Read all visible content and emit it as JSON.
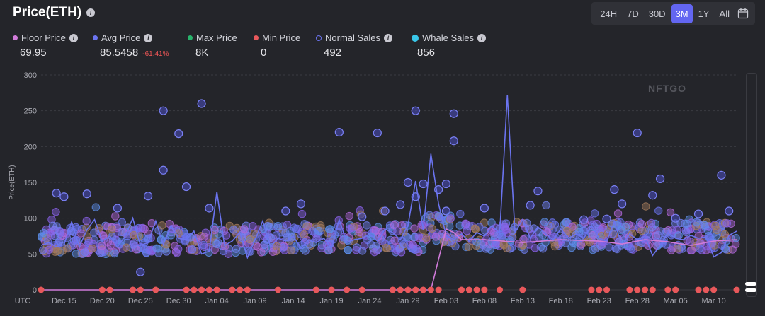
{
  "header": {
    "title": "Price(ETH)"
  },
  "range": {
    "options": [
      "24H",
      "7D",
      "30D",
      "3M",
      "1Y",
      "All"
    ],
    "active": "3M"
  },
  "stats": {
    "floor": {
      "label": "Floor Price",
      "value": "69.95",
      "color": "#d07bd9"
    },
    "avg": {
      "label": "Avg Price",
      "value": "85.5458",
      "change": "-61.41%",
      "color": "#6b74f0"
    },
    "max": {
      "label": "Max Price",
      "value": "8K",
      "color": "#28b36b"
    },
    "min": {
      "label": "Min Price",
      "value": "0",
      "color": "#e8585b"
    },
    "normal": {
      "label": "Normal Sales",
      "value": "492",
      "color": "#6b74f0"
    },
    "whale": {
      "label": "Whale Sales",
      "value": "856",
      "color": "#39c6e8"
    }
  },
  "watermark": "NFTGO",
  "chart_data": {
    "type": "scatter",
    "ylabel": "Price(ETH)",
    "ylim": [
      0,
      300
    ],
    "yticks": [
      0,
      50,
      100,
      150,
      200,
      250,
      300
    ],
    "xstart": "UTC",
    "xticks": [
      "Dec 15",
      "Dec 20",
      "Dec 25",
      "Dec 30",
      "Jan 04",
      "Jan 09",
      "Jan 14",
      "Jan 19",
      "Jan 24",
      "Jan 29",
      "Feb 03",
      "Feb 08",
      "Feb 13",
      "Feb 18",
      "Feb 23",
      "Feb 28",
      "Mar 05",
      "Mar 10"
    ],
    "xlim": [
      12,
      103
    ],
    "avg_line": [
      [
        12,
        62
      ],
      [
        13,
        66
      ],
      [
        14,
        60
      ],
      [
        15,
        63
      ],
      [
        16,
        95
      ],
      [
        17,
        60
      ],
      [
        18,
        84
      ],
      [
        19,
        98
      ],
      [
        20,
        68
      ],
      [
        21,
        75
      ],
      [
        22,
        60
      ],
      [
        23,
        75
      ],
      [
        24,
        100
      ],
      [
        25,
        62
      ],
      [
        26,
        66
      ],
      [
        27,
        96
      ],
      [
        28,
        63
      ],
      [
        29,
        90
      ],
      [
        30,
        72
      ],
      [
        31,
        70
      ],
      [
        32,
        82
      ],
      [
        33,
        50
      ],
      [
        34,
        54
      ],
      [
        35,
        137
      ],
      [
        36,
        62
      ],
      [
        37,
        68
      ],
      [
        38,
        80
      ],
      [
        39,
        45
      ],
      [
        40,
        70
      ],
      [
        41,
        96
      ],
      [
        42,
        60
      ],
      [
        43,
        72
      ],
      [
        44,
        68
      ],
      [
        45,
        75
      ],
      [
        46,
        58
      ],
      [
        47,
        70
      ],
      [
        48,
        66
      ],
      [
        49,
        72
      ],
      [
        50,
        58
      ],
      [
        51,
        98
      ],
      [
        52,
        66
      ],
      [
        53,
        70
      ],
      [
        54,
        72
      ],
      [
        55,
        78
      ],
      [
        56,
        68
      ],
      [
        57,
        85
      ],
      [
        58,
        80
      ],
      [
        59,
        70
      ],
      [
        60,
        90
      ],
      [
        61,
        152
      ],
      [
        62,
        84
      ],
      [
        63,
        190
      ],
      [
        64,
        120
      ],
      [
        65,
        76
      ],
      [
        66,
        70
      ],
      [
        67,
        78
      ],
      [
        68,
        68
      ],
      [
        69,
        80
      ],
      [
        70,
        75
      ],
      [
        71,
        90
      ],
      [
        72,
        78
      ],
      [
        73,
        272
      ],
      [
        74,
        80
      ],
      [
        75,
        98
      ],
      [
        76,
        72
      ],
      [
        77,
        88
      ],
      [
        78,
        78
      ],
      [
        79,
        70
      ],
      [
        80,
        85
      ],
      [
        81,
        72
      ],
      [
        82,
        78
      ],
      [
        83,
        72
      ],
      [
        84,
        90
      ],
      [
        85,
        72
      ],
      [
        86,
        68
      ],
      [
        87,
        95
      ],
      [
        88,
        62
      ],
      [
        89,
        78
      ],
      [
        90,
        70
      ],
      [
        91,
        75
      ],
      [
        92,
        48
      ],
      [
        93,
        62
      ],
      [
        94,
        80
      ],
      [
        95,
        72
      ],
      [
        96,
        70
      ],
      [
        97,
        76
      ],
      [
        98,
        72
      ],
      [
        99,
        74
      ],
      [
        100,
        46
      ],
      [
        101,
        52
      ],
      [
        102,
        76
      ],
      [
        103,
        82
      ]
    ],
    "floor_line": [
      [
        12,
        0
      ],
      [
        63,
        0
      ],
      [
        65,
        85
      ],
      [
        66,
        80
      ],
      [
        67,
        70
      ],
      [
        70,
        70
      ],
      [
        75,
        66
      ],
      [
        80,
        70
      ],
      [
        85,
        68
      ],
      [
        88,
        64
      ],
      [
        91,
        70
      ],
      [
        94,
        67
      ],
      [
        97,
        62
      ],
      [
        100,
        68
      ],
      [
        103,
        70
      ]
    ],
    "whale_sales": [
      [
        25,
        25
      ],
      [
        30,
        218
      ],
      [
        31,
        144
      ],
      [
        28,
        167
      ],
      [
        56,
        219
      ],
      [
        66,
        246
      ],
      [
        66,
        208
      ],
      [
        64,
        140
      ],
      [
        65,
        148
      ],
      [
        90,
        219
      ],
      [
        93,
        155
      ],
      [
        101,
        160
      ],
      [
        92,
        132
      ],
      [
        87,
        140
      ],
      [
        88,
        120
      ],
      [
        77,
        138
      ],
      [
        61,
        130
      ],
      [
        62,
        148
      ],
      [
        60,
        150
      ],
      [
        65,
        110
      ],
      [
        33,
        260
      ],
      [
        51,
        220
      ],
      [
        28,
        250
      ],
      [
        61,
        250
      ],
      [
        14,
        135
      ],
      [
        15,
        130
      ],
      [
        18,
        134
      ],
      [
        22,
        114
      ],
      [
        26,
        131
      ],
      [
        34,
        114
      ],
      [
        44,
        110
      ],
      [
        46,
        120
      ],
      [
        57,
        110
      ],
      [
        54,
        102
      ],
      [
        59,
        119
      ],
      [
        70,
        114
      ],
      [
        76,
        118
      ],
      [
        83,
        98
      ],
      [
        86,
        99
      ],
      [
        95,
        100
      ],
      [
        98,
        106
      ],
      [
        102,
        110
      ]
    ],
    "min_sales": [
      12,
      20,
      21,
      24,
      25,
      27,
      31,
      32,
      33,
      34,
      35,
      37,
      38,
      39,
      43,
      48,
      50,
      52,
      54,
      58,
      59,
      60,
      61,
      62,
      63,
      64,
      67,
      68,
      69,
      70,
      72,
      75,
      84,
      85,
      86,
      89,
      90,
      91,
      92,
      94,
      95,
      98,
      99,
      100,
      103
    ]
  }
}
